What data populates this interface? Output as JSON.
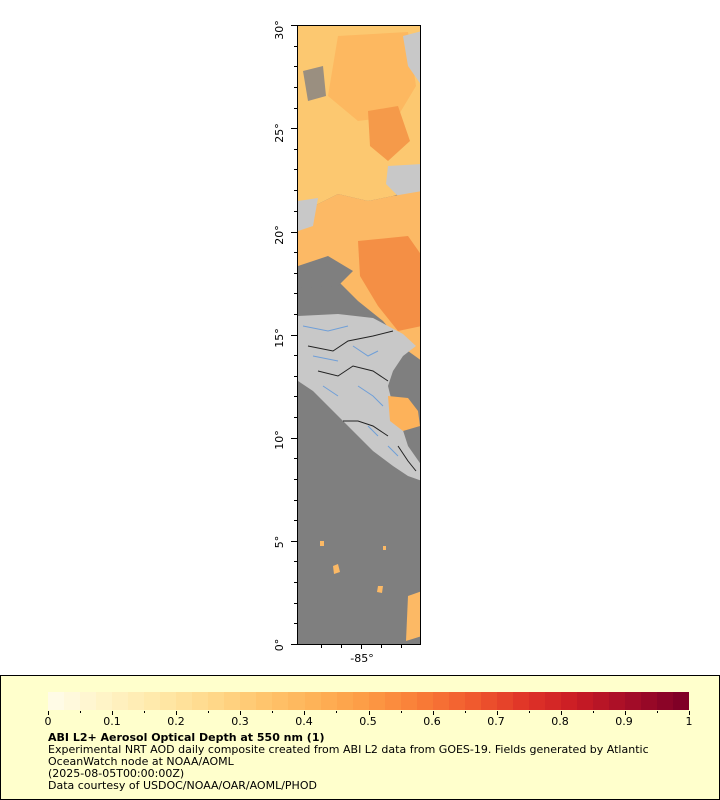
{
  "map": {
    "lat_labels": [
      "30°",
      "25°",
      "20°",
      "15°",
      "10°",
      "5°",
      "0°"
    ],
    "lon_labels": [
      "-85°"
    ],
    "lat_range": [
      0,
      30
    ],
    "background_colors": {
      "ocean_nodata": "#7f7f7f",
      "land": "#c8c8c8",
      "country_border": "#222222",
      "river": "#6f9fd8"
    }
  },
  "legend": {
    "ticks": [
      "0",
      "0.1",
      "0.2",
      "0.3",
      "0.4",
      "0.5",
      "0.6",
      "0.7",
      "0.8",
      "0.9",
      "1"
    ],
    "colormap": [
      "#fffbe6",
      "#fff3c4",
      "#ffe8a8",
      "#ffd98a",
      "#ffc56d",
      "#feb256",
      "#fd9a44",
      "#f97c37",
      "#f05a2e",
      "#e03427",
      "#c91b25",
      "#a50d28",
      "#800026"
    ],
    "title": "ABI L2+ Aerosol Optical Depth at 550 nm (1)",
    "line1": "Experimental NRT AOD daily composite created from ABI L2 data from GOES-19. Fields generated by Atlantic",
    "line2": "OceanWatch node at NOAA/AOML",
    "line3": "(2025-08-05T00:00:00Z)",
    "line4": "Data courtesy of USDOC/NOAA/OAR/AOML/PHOD"
  }
}
